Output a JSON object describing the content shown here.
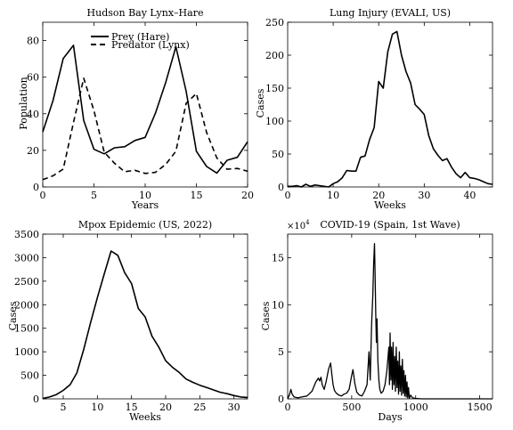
{
  "chart_data": [
    {
      "type": "line",
      "title": "Hudson Bay Lynx–Hare",
      "xlabel": "Years",
      "ylabel": "Population",
      "xlim": [
        0,
        20
      ],
      "ylim": [
        0,
        90
      ],
      "xticks": [
        "0",
        "5",
        "10",
        "15",
        "20"
      ],
      "yticks": [
        "0",
        "20",
        "40",
        "60",
        "80"
      ],
      "legend": "top-center",
      "series": [
        {
          "name": "Prey (Hare)",
          "style": "solid",
          "x": [
            0,
            1,
            2,
            3,
            4,
            5,
            6,
            7,
            8,
            9,
            10,
            11,
            12,
            13,
            14,
            15,
            16,
            17,
            18,
            19,
            20
          ],
          "y": [
            30,
            47.2,
            70.2,
            77.4,
            36.3,
            20.6,
            18.1,
            21.4,
            22,
            25.4,
            27.1,
            40.3,
            57,
            76.6,
            52.3,
            19.5,
            11.2,
            7.6,
            14.6,
            16.2,
            24.7
          ]
        },
        {
          "name": "Predator (Lynx)",
          "style": "dashed",
          "x": [
            0,
            1,
            2,
            3,
            4,
            5,
            6,
            7,
            8,
            9,
            10,
            11,
            12,
            13,
            14,
            15,
            16,
            17,
            18,
            19,
            20
          ],
          "y": [
            4,
            6.1,
            9.8,
            35.2,
            59.4,
            41.7,
            19,
            13,
            8.3,
            9.1,
            7.4,
            8,
            12.3,
            19.5,
            45.7,
            51.1,
            29.7,
            15.8,
            9.7,
            10.1,
            8.6
          ]
        }
      ]
    },
    {
      "type": "line",
      "title": "Lung Injury (EVALI, US)",
      "xlabel": "Weeks",
      "ylabel": "Cases",
      "xlim": [
        0,
        45
      ],
      "ylim": [
        0,
        250
      ],
      "xticks": [
        "0",
        "10",
        "20",
        "30",
        "40"
      ],
      "yticks": [
        "0",
        "50",
        "100",
        "150",
        "200",
        "250"
      ],
      "series": [
        {
          "x": [
            0,
            1,
            2,
            3,
            4,
            5,
            6,
            7,
            8,
            9,
            10,
            11,
            12,
            13,
            14,
            15,
            16,
            17,
            18,
            19,
            20,
            21,
            22,
            23,
            24,
            25,
            26,
            27,
            28,
            29,
            30,
            31,
            32,
            33,
            34,
            35,
            36,
            37,
            38,
            39,
            40,
            41,
            42,
            43,
            44,
            45
          ],
          "y": [
            1,
            1,
            2,
            0,
            4,
            1,
            3,
            2,
            1,
            0,
            5,
            8,
            14,
            25,
            24,
            24,
            45,
            47,
            72,
            90,
            160,
            150,
            205,
            232,
            236,
            200,
            175,
            158,
            125,
            118,
            110,
            78,
            58,
            48,
            40,
            43,
            30,
            20,
            14,
            22,
            14,
            13,
            11,
            8,
            5,
            4
          ]
        }
      ]
    },
    {
      "type": "line",
      "title": "Mpox Epidemic (US, 2022)",
      "xlabel": "Weeks",
      "ylabel": "Cases",
      "xlim": [
        2,
        32
      ],
      "ylim": [
        0,
        3500
      ],
      "xticks": [
        "5",
        "10",
        "15",
        "20",
        "25",
        "30"
      ],
      "yticks": [
        "0",
        "500",
        "1000",
        "1500",
        "2000",
        "2500",
        "3000",
        "3500"
      ],
      "series": [
        {
          "x": [
            2,
            3,
            4,
            5,
            6,
            7,
            8,
            9,
            10,
            11,
            12,
            13,
            14,
            15,
            16,
            17,
            18,
            19,
            20,
            21,
            22,
            23,
            24,
            25,
            26,
            27,
            28,
            29,
            30,
            31,
            32
          ],
          "y": [
            10,
            40,
            90,
            180,
            300,
            550,
            1050,
            1620,
            2150,
            2650,
            3140,
            3050,
            2680,
            2450,
            1920,
            1740,
            1330,
            1100,
            810,
            670,
            560,
            420,
            350,
            290,
            240,
            190,
            140,
            110,
            70,
            40,
            30
          ]
        }
      ]
    },
    {
      "type": "line",
      "title": "COVID-19 (Spain, 1st Wave)",
      "xlabel": "Days",
      "ylabel": "Cases",
      "y_multiplier": "×10",
      "y_multiplier_exponent": "4",
      "xlim": [
        0,
        1600
      ],
      "ylim": [
        0,
        17.5
      ],
      "xticks": [
        "0",
        "500",
        "1000",
        "1500"
      ],
      "yticks": [
        "0",
        "5",
        "10",
        "15"
      ],
      "series": [
        {
          "x": [
            0,
            15,
            25,
            35,
            50,
            80,
            110,
            150,
            190,
            220,
            240,
            250,
            260,
            270,
            285,
            300,
            320,
            335,
            345,
            355,
            365,
            380,
            400,
            420,
            440,
            460,
            480,
            500,
            510,
            525,
            540,
            560,
            580,
            600,
            620,
            635,
            645,
            655,
            665,
            672,
            678,
            683,
            688,
            693,
            698,
            705,
            712,
            720,
            730,
            745,
            760,
            775,
            790,
            795,
            800,
            806,
            812,
            818,
            824,
            830,
            836,
            842,
            848,
            854,
            860,
            866,
            872,
            878,
            884,
            890,
            896,
            902,
            908,
            914,
            920,
            926,
            932,
            938,
            944,
            950,
            960,
            975,
            1000,
            1050,
            1100,
            1200,
            1300,
            1400,
            1500,
            1600
          ],
          "y": [
            0,
            0.5,
            1.0,
            0.5,
            0.2,
            0.1,
            0.2,
            0.3,
            0.8,
            1.8,
            2.2,
            1.9,
            2.3,
            1.5,
            1.0,
            1.8,
            3.2,
            3.8,
            2.6,
            1.5,
            0.9,
            0.6,
            0.4,
            0.3,
            0.5,
            0.6,
            1.0,
            2.5,
            3.1,
            1.6,
            0.7,
            0.4,
            0.3,
            0.8,
            1.5,
            5.0,
            2.0,
            7.8,
            11.0,
            14.5,
            16.5,
            13.0,
            9.0,
            6.0,
            8.5,
            4.0,
            2.0,
            1.0,
            0.6,
            0.8,
            1.5,
            3.0,
            5.5,
            1.5,
            7.0,
            2.0,
            5.5,
            1.0,
            6.0,
            1.5,
            4.5,
            0.8,
            5.5,
            1.2,
            4.0,
            0.5,
            5.0,
            0.8,
            3.5,
            0.4,
            4.2,
            0.6,
            3.0,
            0.3,
            2.5,
            0.2,
            1.8,
            0.1,
            1.2,
            0.05,
            0.4,
            0.1,
            0.05,
            0,
            0,
            0,
            0,
            0,
            0,
            0
          ]
        }
      ]
    }
  ]
}
